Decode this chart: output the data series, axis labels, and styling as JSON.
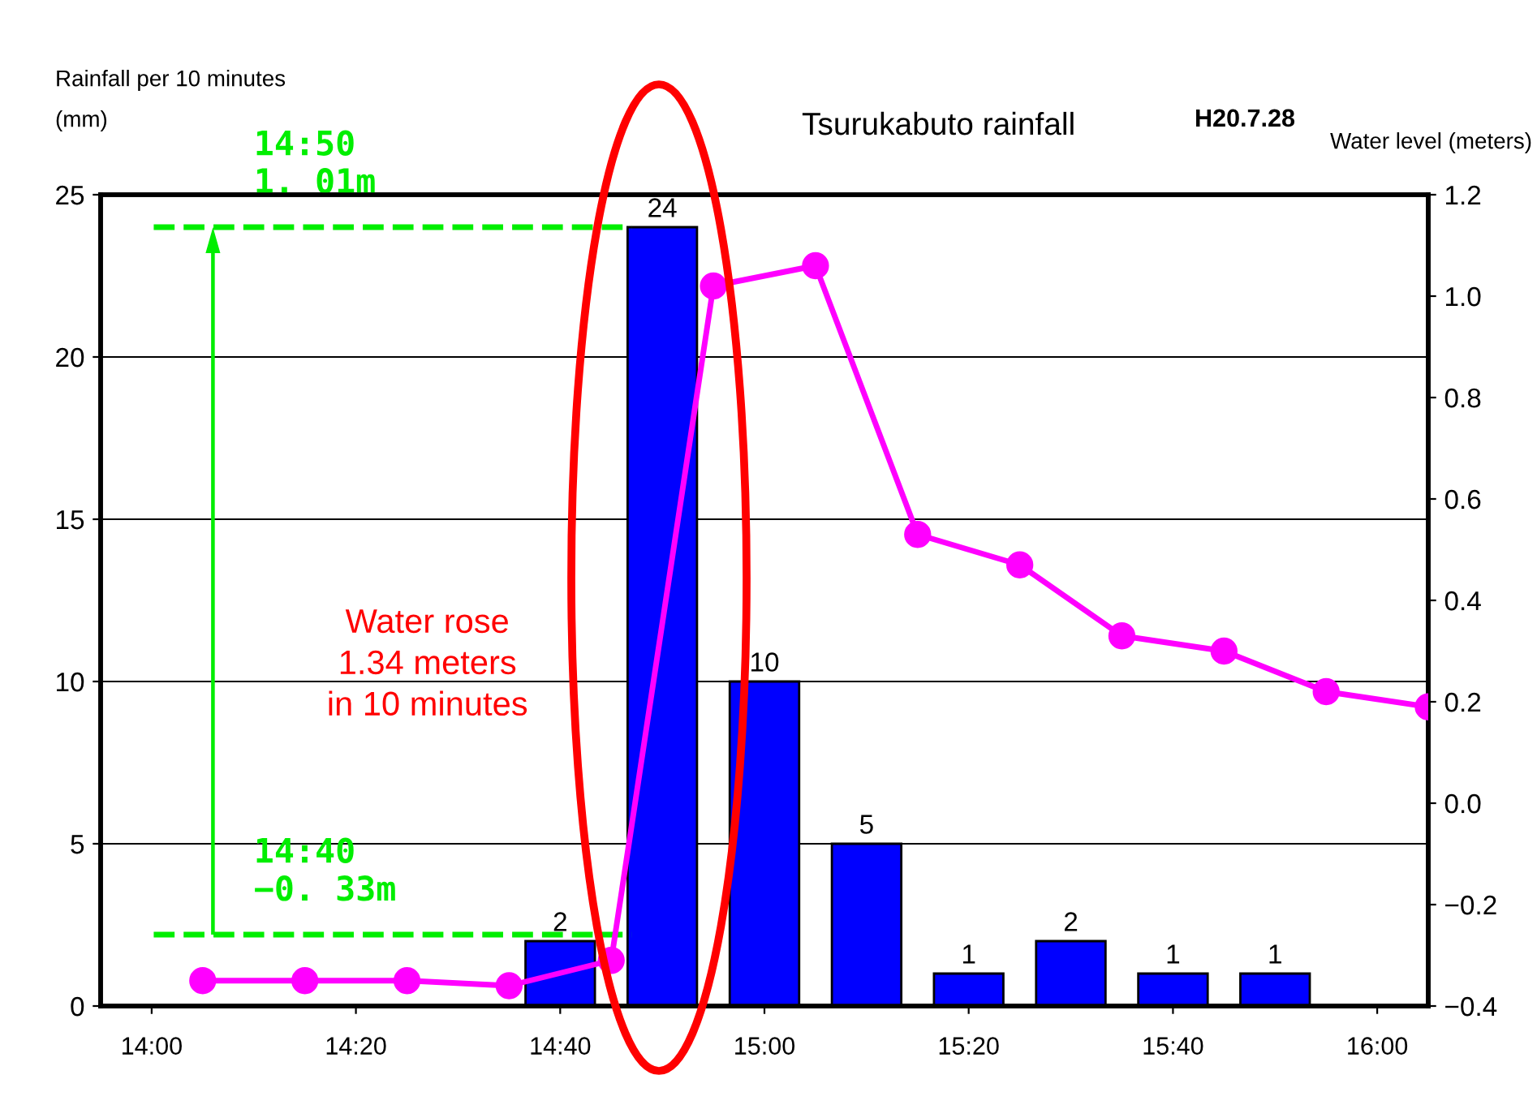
{
  "chart_data": {
    "type": "bar",
    "title": "Tsurukabuto rainfall",
    "ylabel": "Rainfall per 10 minutes\n(mm)",
    "y2label": "Water level (meters)",
    "x": [
      14.6667,
      14.8333,
      15.0,
      15.1667,
      15.3333,
      15.5,
      15.6667,
      15.8333
    ],
    "series": [
      {
        "color": "#0000ff",
        "values": [
          2,
          24,
          10,
          5,
          1,
          2,
          1,
          1
        ],
        "data_labels": true
      },
      {
        "type": "line",
        "axis": "y2",
        "color": "#ff00ff",
        "marker": "circle",
        "line_style": "solid",
        "x": [
          14.0833,
          14.25,
          14.4167,
          14.5833,
          14.75,
          14.9167,
          15.0833,
          15.25,
          15.4167,
          15.5833,
          15.75,
          15.9167,
          16.0833
        ],
        "values": [
          -0.35,
          -0.35,
          -0.35,
          -0.36,
          -0.31,
          1.02,
          1.06,
          0.53,
          0.47,
          0.33,
          0.3,
          0.22,
          0.19
        ]
      }
    ],
    "xlim": [
      13.9167,
      16.0833
    ],
    "xticks": [
      {
        "value": 14.0,
        "label": "14:00"
      },
      {
        "value": 14.3333,
        "label": "14:20"
      },
      {
        "value": 14.6667,
        "label": "14:40"
      },
      {
        "value": 15.0,
        "label": "15:00"
      },
      {
        "value": 15.3333,
        "label": "15:20"
      },
      {
        "value": 15.6667,
        "label": "15:40"
      },
      {
        "value": 16.0,
        "label": "16:00"
      }
    ],
    "ylim": [
      0,
      25
    ],
    "yticks": [
      0,
      5,
      10,
      15,
      20,
      25
    ],
    "y2lim": [
      -0.4,
      1.2
    ],
    "y2ticks": [
      {
        "value": -0.4,
        "label": "−0.4"
      },
      {
        "value": -0.2,
        "label": "−0.2"
      },
      {
        "value": 0.0,
        "label": "0.0"
      },
      0.2,
      0.4,
      0.6,
      0.8,
      {
        "value": 1.0,
        "label": "1.0"
      },
      1.2
    ],
    "grid": "y",
    "ref_lines": [
      {
        "axis": "y",
        "value": 24,
        "color": "#00ee00",
        "line_style": "dashed"
      },
      {
        "axis": "y",
        "value": 2.2,
        "color": "#00ee00",
        "line_style": "dashed"
      }
    ],
    "annotations": [
      {
        "text": "14:50\n1. 01m",
        "x": 14.1667,
        "y": 24
      },
      {
        "text": "14:40\n−0. 33m",
        "x": 14.1667,
        "y": 2.2
      },
      "Water rose\n1.34 meters\nin 10 minutes",
      "H20.7.28"
    ]
  }
}
